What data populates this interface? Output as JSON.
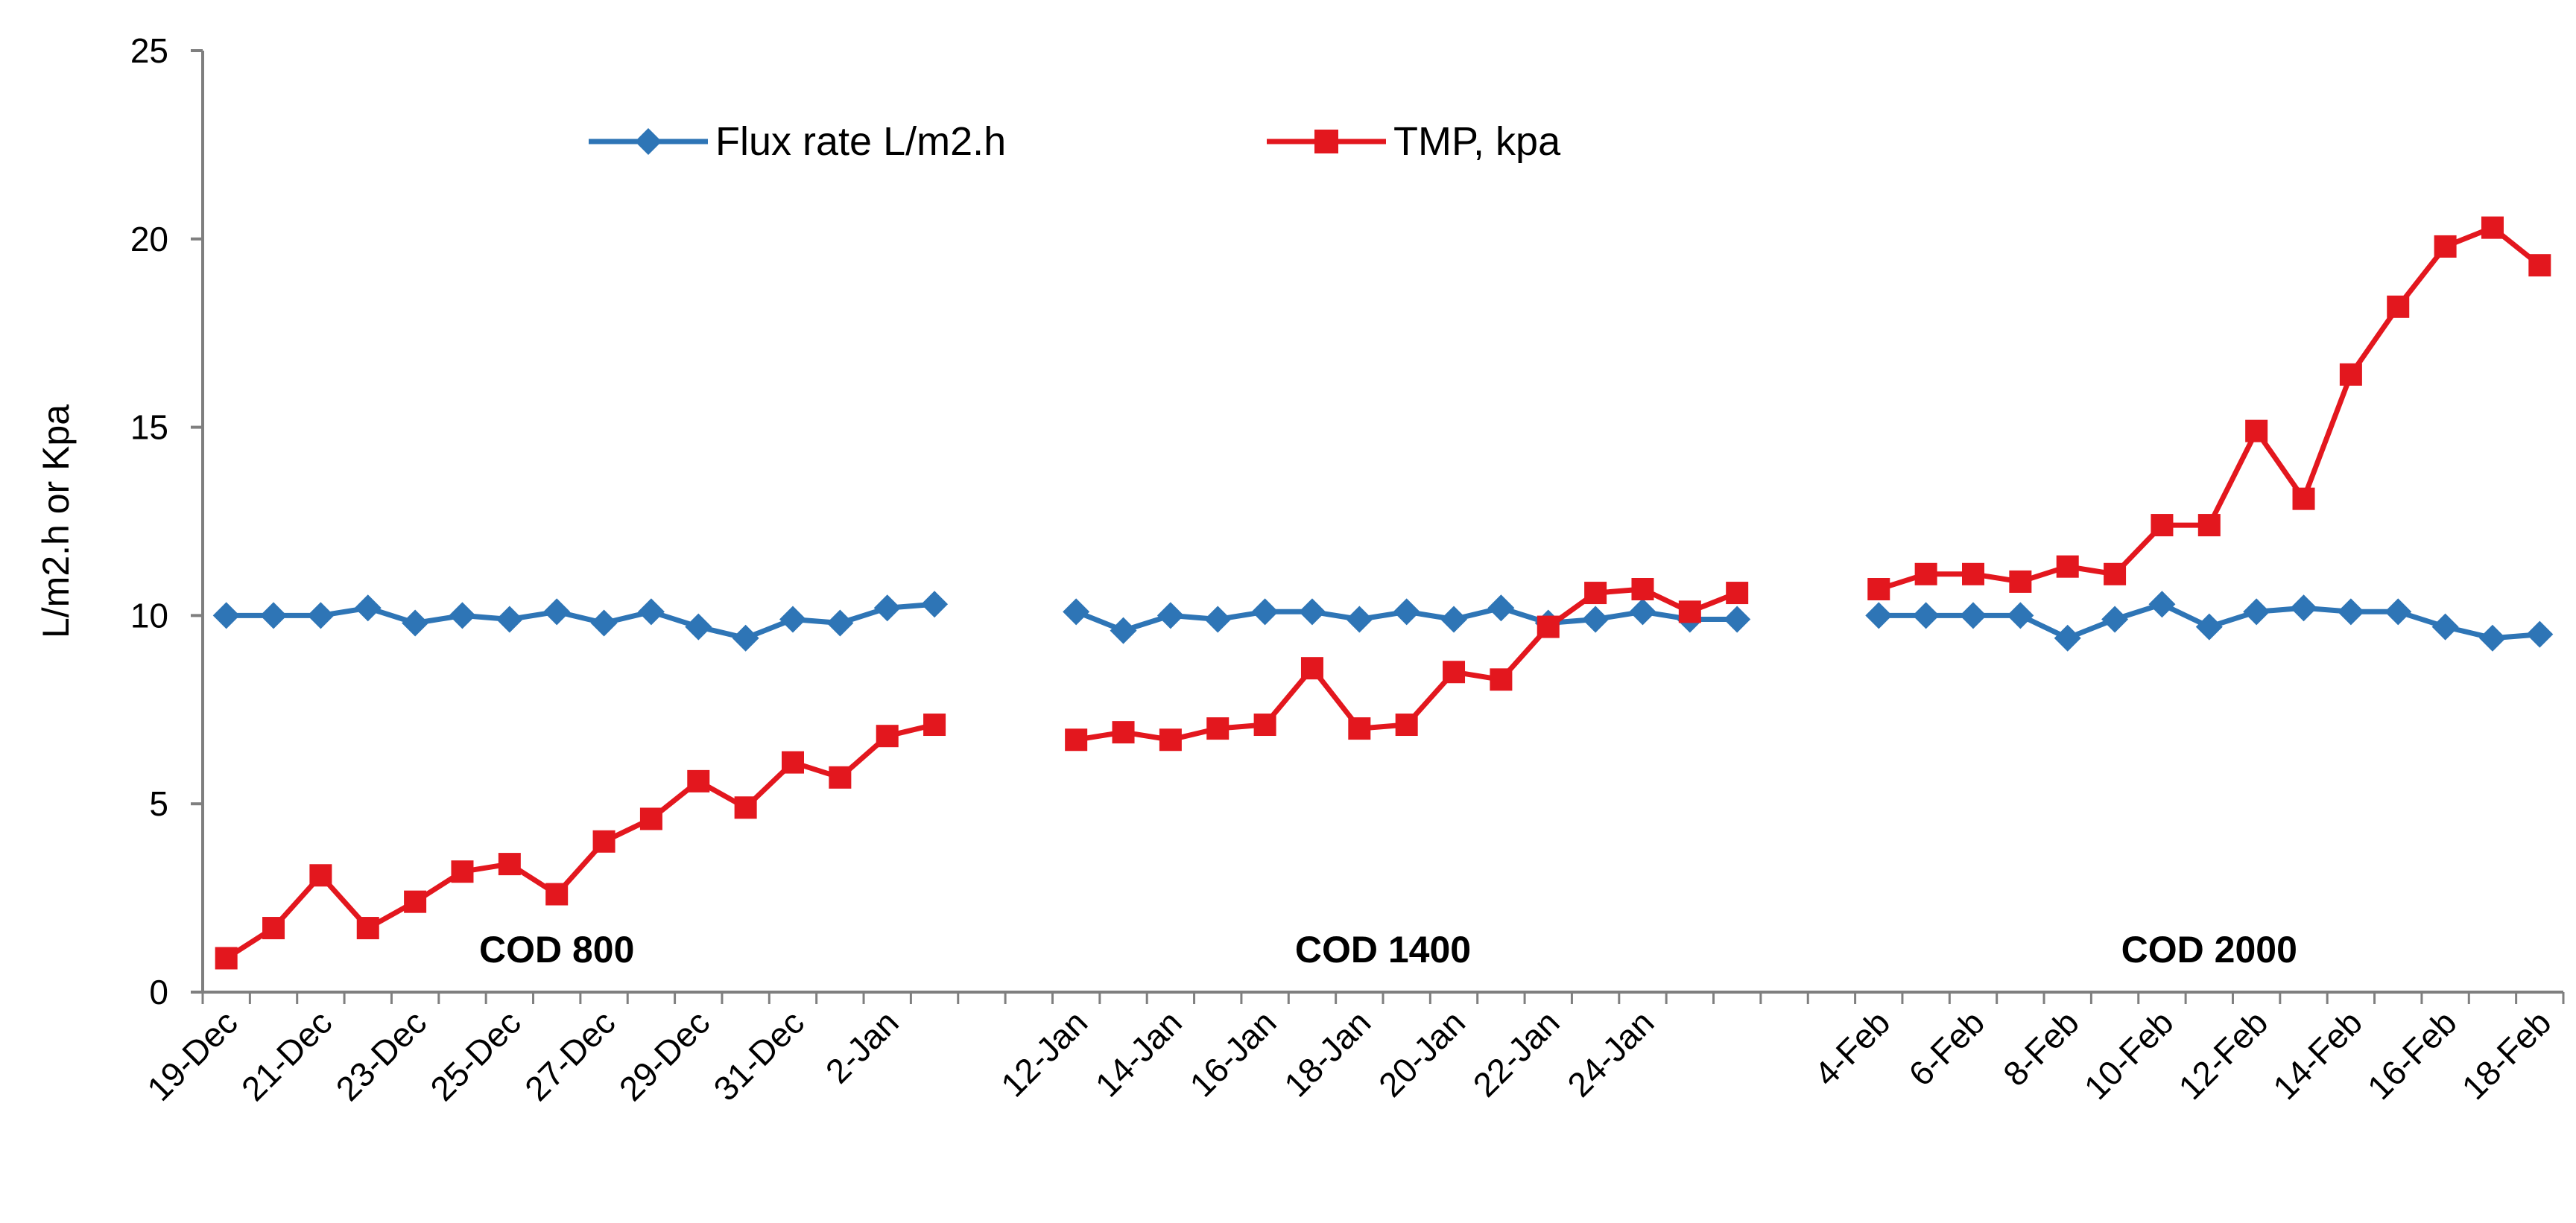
{
  "chart_data": {
    "type": "line",
    "title": "",
    "xlabel": "",
    "ylabel": "L/m2.h or Kpa",
    "ylim": [
      0,
      25
    ],
    "yticks": [
      "0",
      "5",
      "10",
      "15",
      "20",
      "25"
    ],
    "grid": false,
    "legend_position": "top-left",
    "x_tick_labels": [
      "19-Dec",
      "21-Dec",
      "23-Dec",
      "25-Dec",
      "27-Dec",
      "29-Dec",
      "31-Dec",
      "2-Jan",
      "12-Jan",
      "14-Jan",
      "16-Jan",
      "18-Jan",
      "20-Jan",
      "22-Jan",
      "24-Jan",
      "4-Feb",
      "6-Feb",
      "8-Feb",
      "10-Feb",
      "12-Feb",
      "14-Feb",
      "16-Feb",
      "18-Feb"
    ],
    "x_tick_index": [
      0,
      2,
      4,
      6,
      8,
      10,
      12,
      14,
      18,
      20,
      22,
      24,
      26,
      28,
      30,
      35,
      37,
      39,
      41,
      43,
      45,
      47,
      49
    ],
    "n_slots": 50,
    "groups": [
      {
        "label": "COD 800",
        "center_index": 7
      },
      {
        "label": "COD 1400",
        "center_index": 24.5
      },
      {
        "label": "COD 2000",
        "center_index": 42
      }
    ],
    "series": [
      {
        "name": "Flux rate L/m2.h",
        "color": "#2e75b6",
        "marker": "diamond",
        "segments": [
          {
            "start": 0,
            "values": [
              10.0,
              10.0,
              10.0,
              10.2,
              9.8,
              10.0,
              9.9,
              10.1,
              9.8,
              10.1,
              9.7,
              9.4,
              9.9,
              9.8,
              10.2,
              10.3
            ]
          },
          {
            "start": 18,
            "values": [
              10.1,
              9.6,
              10.0,
              9.9,
              10.1,
              10.1,
              9.9,
              10.1,
              9.9,
              10.2,
              9.8,
              9.9,
              10.1,
              9.9,
              9.9
            ]
          },
          {
            "start": 35,
            "values": [
              10.0,
              10.0,
              10.0,
              10.0,
              9.4,
              9.9,
              10.3,
              9.7,
              10.1,
              10.2,
              10.1,
              10.1,
              9.7,
              9.4,
              9.5
            ]
          }
        ]
      },
      {
        "name": "TMP, kpa",
        "color": "#e3171e",
        "marker": "square",
        "segments": [
          {
            "start": 0,
            "values": [
              0.9,
              1.7,
              3.1,
              1.7,
              2.4,
              3.2,
              3.4,
              2.6,
              4.0,
              4.6,
              5.6,
              4.9,
              6.1,
              5.7,
              6.8,
              7.1
            ]
          },
          {
            "start": 18,
            "values": [
              6.7,
              6.9,
              6.7,
              7.0,
              7.1,
              8.6,
              7.0,
              7.1,
              8.5,
              8.3,
              9.7,
              10.6,
              10.7,
              10.1,
              10.6
            ]
          },
          {
            "start": 35,
            "values": [
              10.7,
              11.1,
              11.1,
              10.9,
              11.3,
              11.1,
              12.4,
              12.4,
              14.9,
              13.1,
              16.4,
              18.2,
              19.8,
              20.3,
              19.3
            ]
          }
        ]
      }
    ]
  }
}
